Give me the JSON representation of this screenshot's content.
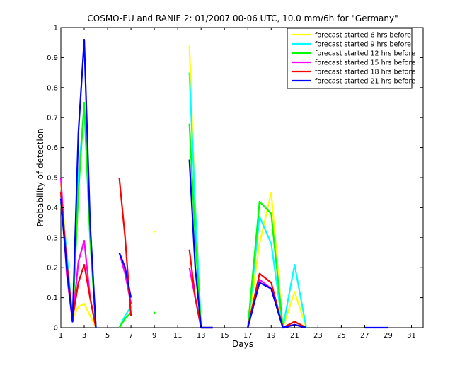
{
  "chart_data": {
    "type": "line",
    "title": "COSMO-EU and RANIE 2: 01/2007 00-06 UTC, 10.0 mm/6h for \"Germany\"",
    "xlabel": "Days",
    "ylabel": "Probability of detection",
    "xlim": [
      1,
      32
    ],
    "ylim": [
      0,
      1
    ],
    "xticks": [
      1,
      3,
      5,
      7,
      9,
      11,
      13,
      15,
      17,
      19,
      21,
      23,
      25,
      27,
      29,
      31
    ],
    "yticks": [
      0,
      0.1,
      0.2,
      0.3,
      0.4,
      0.5,
      0.6,
      0.7,
      0.8,
      0.9,
      1
    ],
    "x": [
      1,
      1.5,
      2,
      2.5,
      3,
      3.5,
      4,
      5,
      6,
      6.5,
      7,
      8,
      9,
      10,
      11,
      12,
      12.5,
      13,
      14,
      15,
      16,
      17,
      18,
      19,
      20,
      21,
      22,
      23,
      24,
      25,
      26,
      27,
      28,
      29
    ],
    "legend_position": "top-right",
    "series": [
      {
        "name": "forecast started 6 hrs before",
        "color": "#ffff00",
        "values": [
          0.48,
          0.25,
          0.03,
          0.07,
          0.08,
          0.04,
          0,
          null,
          0,
          0.03,
          0.05,
          null,
          0.32,
          null,
          null,
          0.94,
          0.4,
          0,
          0,
          null,
          null,
          0,
          0.28,
          0.45,
          0,
          0.12,
          0,
          null,
          null,
          null,
          null,
          null,
          null,
          null
        ]
      },
      {
        "name": "forecast started 9 hrs before",
        "color": "#00ffff",
        "values": [
          0.44,
          0.25,
          0.03,
          0.5,
          0.74,
          0.3,
          0,
          null,
          0,
          0.04,
          0.07,
          null,
          null,
          null,
          null,
          0.85,
          0.4,
          0,
          0,
          null,
          null,
          0,
          0.37,
          0.28,
          0,
          0.21,
          0,
          null,
          null,
          null,
          null,
          null,
          null,
          null
        ]
      },
      {
        "name": "forecast started 12 hrs before",
        "color": "#00ff00",
        "values": [
          0.42,
          0.22,
          0.02,
          0.45,
          0.75,
          0.3,
          0,
          null,
          0,
          0.03,
          0.05,
          null,
          0.05,
          null,
          null,
          0.68,
          0.3,
          0,
          0,
          null,
          null,
          0,
          0.42,
          0.38,
          0,
          0.02,
          0,
          null,
          null,
          null,
          null,
          null,
          null,
          null
        ]
      },
      {
        "name": "forecast started 15 hrs before",
        "color": "#ff00ff",
        "values": [
          0.5,
          0.18,
          0.02,
          0.22,
          0.29,
          0.1,
          0,
          null,
          0.25,
          0.18,
          0.08,
          null,
          null,
          null,
          null,
          0.2,
          0.1,
          0,
          0,
          null,
          null,
          0,
          0.16,
          0.13,
          0,
          0.01,
          0,
          null,
          null,
          null,
          null,
          null,
          null,
          null
        ]
      },
      {
        "name": "forecast started 18 hrs before",
        "color": "#ff0000",
        "values": [
          0.45,
          0.22,
          0.03,
          0.15,
          0.21,
          0.1,
          0,
          null,
          0.5,
          0.3,
          0.04,
          null,
          null,
          null,
          null,
          0.26,
          0.1,
          0,
          0,
          null,
          null,
          0,
          0.18,
          0.15,
          0,
          0.02,
          0,
          null,
          null,
          null,
          null,
          null,
          null,
          null
        ]
      },
      {
        "name": "forecast started 21 hrs before",
        "color": "#0000ff",
        "values": [
          0.43,
          0.2,
          0.02,
          0.65,
          0.96,
          0.35,
          0,
          null,
          0.25,
          0.2,
          0.1,
          null,
          null,
          null,
          null,
          0.56,
          0.2,
          0,
          0,
          null,
          null,
          0,
          0.15,
          0.13,
          0,
          0.01,
          0,
          null,
          null,
          null,
          null,
          0,
          0,
          0
        ]
      }
    ]
  }
}
